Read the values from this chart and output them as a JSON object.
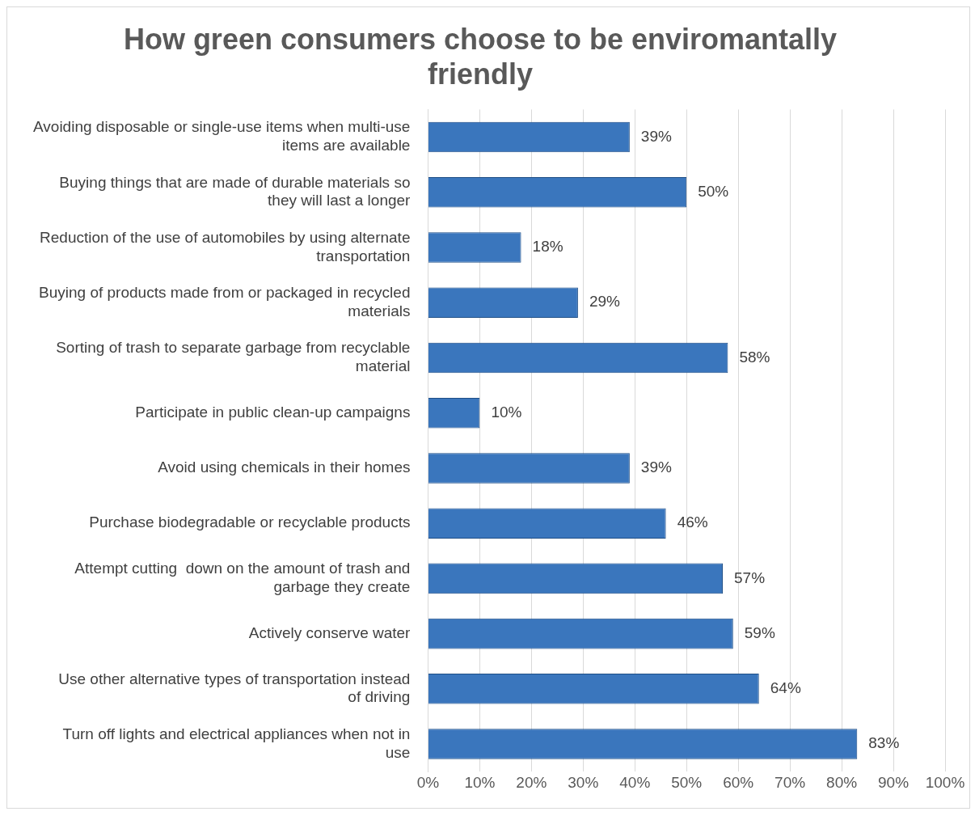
{
  "chart_data": {
    "type": "bar",
    "orientation": "horizontal",
    "title": "How green consumers choose to be enviromantally friendly",
    "categories": [
      "Avoiding disposable or single-use items when multi-use items are available",
      "Buying things that are made of durable materials so they will last a longer",
      "Reduction of the use of automobiles by using alternate transportation",
      "Buying of products made from or packaged in recycled materials",
      "Sorting of trash to separate garbage from recyclable material",
      "Participate in public clean-up campaigns",
      "Avoid using chemicals in their homes",
      "Purchase biodegradable or recyclable products",
      "Attempt cutting  down on the amount of trash and garbage they create",
      "Actively conserve water",
      "Use other alternative types of transportation instead of driving",
      "Turn off lights and electrical appliances when not in use"
    ],
    "values": [
      39,
      50,
      18,
      29,
      58,
      10,
      39,
      46,
      57,
      59,
      64,
      83
    ],
    "value_labels": [
      "39%",
      "50%",
      "18%",
      "29%",
      "58%",
      "10%",
      "39%",
      "46%",
      "57%",
      "59%",
      "64%",
      "83%"
    ],
    "color": "#3a76bd",
    "xlim": [
      0,
      100
    ],
    "xticks": [
      {
        "value": 0,
        "label": "0%"
      },
      {
        "value": 10,
        "label": "10%"
      },
      {
        "value": 20,
        "label": "20%"
      },
      {
        "value": 30,
        "label": "30%"
      },
      {
        "value": 40,
        "label": "40%"
      },
      {
        "value": 50,
        "label": "50%"
      },
      {
        "value": 60,
        "label": "60%"
      },
      {
        "value": 70,
        "label": "70%"
      },
      {
        "value": 80,
        "label": "80%"
      },
      {
        "value": 90,
        "label": "90%"
      },
      {
        "value": 100,
        "label": "100%"
      }
    ],
    "grid": "x",
    "legend": false
  }
}
